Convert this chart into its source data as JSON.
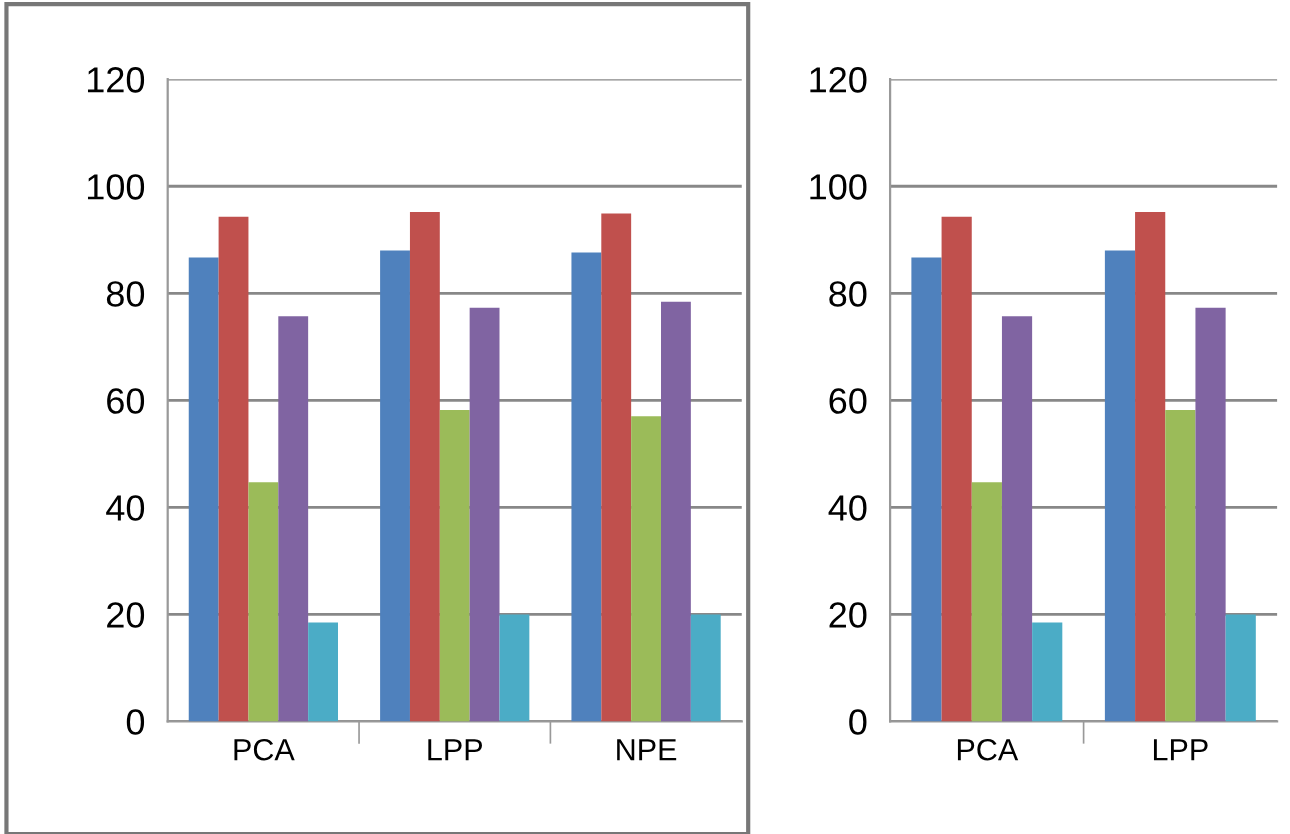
{
  "chart_data": [
    {
      "type": "bar",
      "categories": [
        "PCA",
        "LPP",
        "NPE"
      ],
      "ylim": [
        0,
        120
      ],
      "yticks": [
        0,
        20,
        40,
        60,
        80,
        100,
        120
      ],
      "grid": "y",
      "series": [
        {
          "color": "#4f81bd",
          "values": [
            86.7,
            88,
            87.6
          ]
        },
        {
          "color": "#c0504d",
          "values": [
            94.3,
            95.2,
            94.9
          ]
        },
        {
          "color": "#9bbb59",
          "values": [
            44.7,
            58.2,
            57
          ]
        },
        {
          "color": "#8064a2",
          "values": [
            75.7,
            77.3,
            78.4
          ]
        },
        {
          "color": "#4bacc6",
          "values": [
            18.5,
            20,
            20
          ]
        }
      ]
    },
    {
      "type": "bar",
      "categories": [
        "PCA",
        "LPP"
      ],
      "ylim": [
        0,
        120
      ],
      "yticks": [
        0,
        20,
        40,
        60,
        80,
        100,
        120
      ],
      "grid": "y",
      "series": [
        {
          "color": "#4f81bd",
          "values": [
            86.7,
            88
          ]
        },
        {
          "color": "#c0504d",
          "values": [
            94.3,
            95.2
          ]
        },
        {
          "color": "#9bbb59",
          "values": [
            44.7,
            58.2
          ]
        },
        {
          "color": "#8064a2",
          "values": [
            75.7,
            77.3
          ]
        },
        {
          "color": "#4bacc6",
          "values": [
            18.5,
            20
          ]
        }
      ]
    }
  ]
}
